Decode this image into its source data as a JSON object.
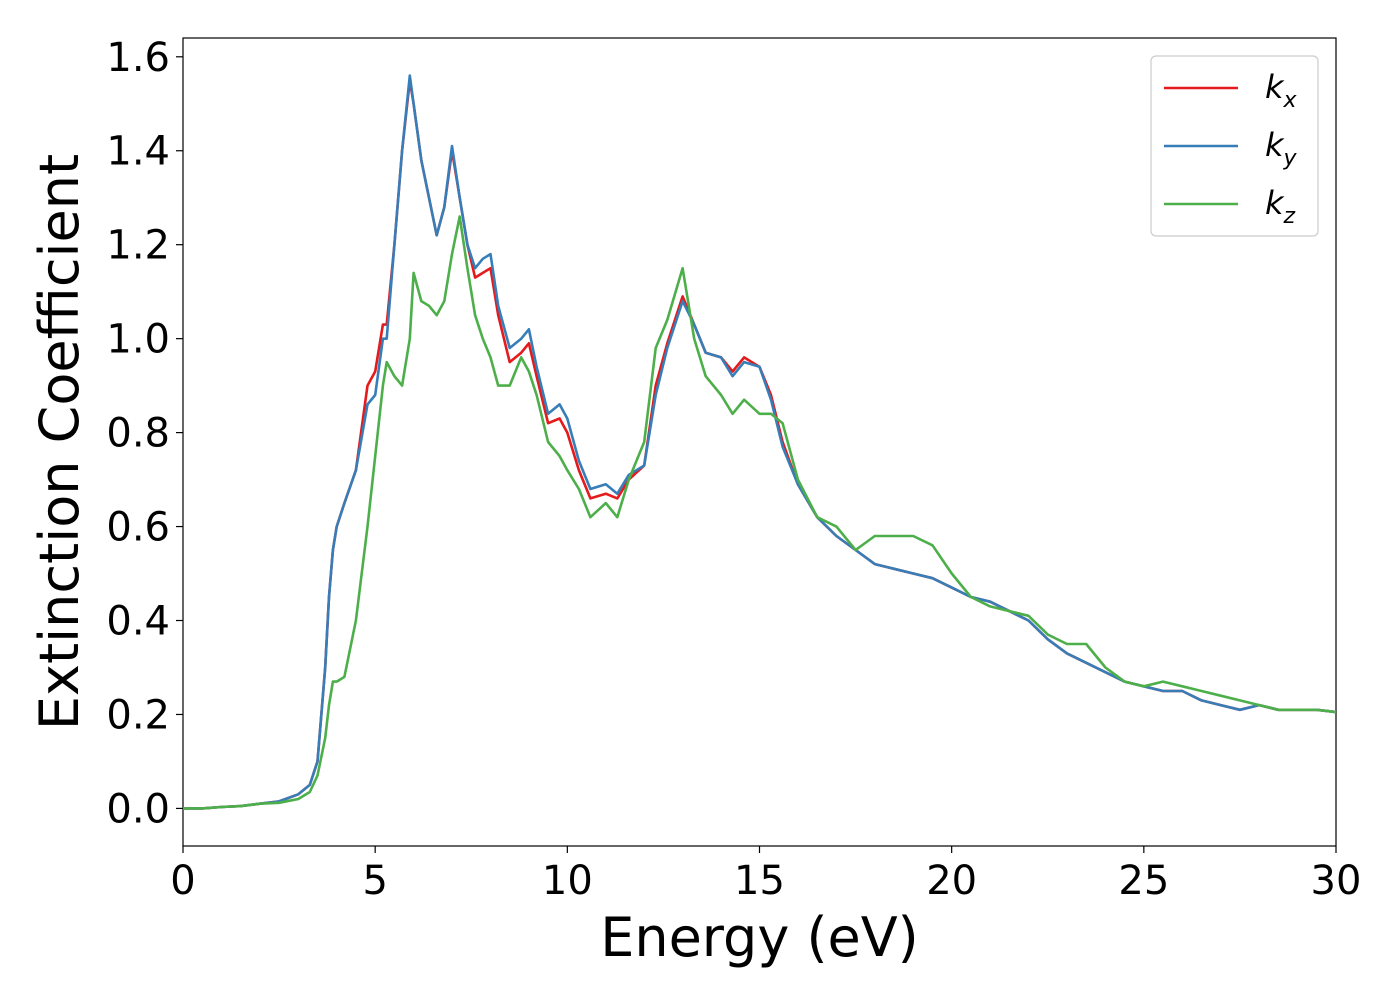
{
  "chart_data": {
    "type": "line",
    "xlabel": "Energy (eV)",
    "ylabel": "Extinction Coefficient",
    "xlim": [
      0,
      30
    ],
    "ylim": [
      -0.08,
      1.64
    ],
    "xticks": [
      0,
      5,
      10,
      15,
      20,
      25,
      30
    ],
    "xtick_labels": [
      "0",
      "5",
      "10",
      "15",
      "20",
      "25",
      "30"
    ],
    "yticks": [
      0.0,
      0.2,
      0.4,
      0.6,
      0.8,
      1.0,
      1.2,
      1.4,
      1.6
    ],
    "ytick_labels": [
      "0.0",
      "0.2",
      "0.4",
      "0.6",
      "0.8",
      "1.0",
      "1.2",
      "1.4",
      "1.6"
    ],
    "grid": false,
    "legend_position": "top-right",
    "series": [
      {
        "name": "k_x",
        "label_base": "k",
        "label_sub": "x",
        "color": "#e41a1c",
        "x": [
          0,
          0.5,
          1,
          1.5,
          2,
          2.5,
          3,
          3.3,
          3.5,
          3.7,
          3.8,
          3.9,
          4.0,
          4.2,
          4.5,
          4.8,
          5.0,
          5.2,
          5.3,
          5.5,
          5.7,
          5.9,
          6.0,
          6.2,
          6.4,
          6.6,
          6.8,
          7.0,
          7.2,
          7.4,
          7.6,
          7.8,
          8.0,
          8.2,
          8.5,
          8.8,
          9.0,
          9.2,
          9.5,
          9.8,
          10.0,
          10.3,
          10.6,
          11.0,
          11.3,
          11.6,
          12.0,
          12.3,
          12.6,
          13.0,
          13.3,
          13.6,
          14.0,
          14.3,
          14.6,
          15.0,
          15.3,
          15.6,
          16.0,
          16.5,
          17.0,
          17.5,
          18.0,
          18.5,
          19.0,
          19.5,
          20.0,
          20.5,
          21.0,
          21.5,
          22.0,
          22.5,
          23.0,
          23.5,
          24.0,
          24.5,
          25.0,
          25.5,
          26.0,
          26.5,
          27.0,
          27.5,
          28.0,
          28.5,
          29.0,
          29.5,
          30.0
        ],
        "y": [
          0.0,
          0.0,
          0.003,
          0.005,
          0.01,
          0.015,
          0.03,
          0.05,
          0.1,
          0.3,
          0.45,
          0.55,
          0.6,
          0.65,
          0.72,
          0.9,
          0.93,
          1.03,
          1.03,
          1.2,
          1.4,
          1.55,
          1.5,
          1.38,
          1.3,
          1.22,
          1.28,
          1.4,
          1.3,
          1.2,
          1.13,
          1.14,
          1.15,
          1.05,
          0.95,
          0.97,
          0.99,
          0.92,
          0.82,
          0.83,
          0.8,
          0.72,
          0.66,
          0.67,
          0.66,
          0.7,
          0.73,
          0.9,
          0.99,
          1.09,
          1.03,
          0.97,
          0.96,
          0.93,
          0.96,
          0.94,
          0.88,
          0.78,
          0.69,
          0.62,
          0.58,
          0.55,
          0.52,
          0.51,
          0.5,
          0.49,
          0.47,
          0.45,
          0.44,
          0.42,
          0.4,
          0.36,
          0.33,
          0.31,
          0.29,
          0.27,
          0.26,
          0.25,
          0.25,
          0.23,
          0.22,
          0.21,
          0.22,
          0.21,
          0.21,
          0.21,
          0.205
        ]
      },
      {
        "name": "k_y",
        "label_base": "k",
        "label_sub": "y",
        "color": "#377eb8",
        "x": [
          0,
          0.5,
          1,
          1.5,
          2,
          2.5,
          3,
          3.3,
          3.5,
          3.7,
          3.8,
          3.9,
          4.0,
          4.2,
          4.5,
          4.8,
          5.0,
          5.2,
          5.3,
          5.5,
          5.7,
          5.9,
          6.0,
          6.2,
          6.4,
          6.6,
          6.8,
          7.0,
          7.2,
          7.4,
          7.6,
          7.8,
          8.0,
          8.2,
          8.5,
          8.8,
          9.0,
          9.2,
          9.5,
          9.8,
          10.0,
          10.3,
          10.6,
          11.0,
          11.3,
          11.6,
          12.0,
          12.3,
          12.6,
          13.0,
          13.3,
          13.6,
          14.0,
          14.3,
          14.6,
          15.0,
          15.3,
          15.6,
          16.0,
          16.5,
          17.0,
          17.5,
          18.0,
          18.5,
          19.0,
          19.5,
          20.0,
          20.5,
          21.0,
          21.5,
          22.0,
          22.5,
          23.0,
          23.5,
          24.0,
          24.5,
          25.0,
          25.5,
          26.0,
          26.5,
          27.0,
          27.5,
          28.0,
          28.5,
          29.0,
          29.5,
          30.0
        ],
        "y": [
          0.0,
          0.0,
          0.003,
          0.005,
          0.01,
          0.015,
          0.03,
          0.05,
          0.1,
          0.3,
          0.45,
          0.55,
          0.6,
          0.65,
          0.72,
          0.86,
          0.88,
          1.0,
          1.0,
          1.2,
          1.4,
          1.56,
          1.5,
          1.38,
          1.3,
          1.22,
          1.28,
          1.41,
          1.3,
          1.2,
          1.15,
          1.17,
          1.18,
          1.07,
          0.98,
          1.0,
          1.02,
          0.94,
          0.84,
          0.86,
          0.83,
          0.74,
          0.68,
          0.69,
          0.67,
          0.71,
          0.73,
          0.88,
          0.98,
          1.08,
          1.03,
          0.97,
          0.96,
          0.92,
          0.95,
          0.94,
          0.87,
          0.77,
          0.69,
          0.62,
          0.58,
          0.55,
          0.52,
          0.51,
          0.5,
          0.49,
          0.47,
          0.45,
          0.44,
          0.42,
          0.4,
          0.36,
          0.33,
          0.31,
          0.29,
          0.27,
          0.26,
          0.25,
          0.25,
          0.23,
          0.22,
          0.21,
          0.22,
          0.21,
          0.21,
          0.21,
          0.205
        ]
      },
      {
        "name": "k_z",
        "label_base": "k",
        "label_sub": "z",
        "color": "#4daf4a",
        "x": [
          0,
          0.5,
          1,
          1.5,
          2,
          2.5,
          3,
          3.3,
          3.5,
          3.7,
          3.8,
          3.9,
          4.0,
          4.2,
          4.5,
          4.8,
          5.0,
          5.2,
          5.3,
          5.5,
          5.7,
          5.9,
          6.0,
          6.2,
          6.4,
          6.6,
          6.8,
          7.0,
          7.2,
          7.4,
          7.6,
          7.8,
          8.0,
          8.2,
          8.5,
          8.8,
          9.0,
          9.2,
          9.5,
          9.8,
          10.0,
          10.3,
          10.6,
          11.0,
          11.3,
          11.6,
          12.0,
          12.3,
          12.6,
          13.0,
          13.3,
          13.6,
          14.0,
          14.3,
          14.6,
          15.0,
          15.3,
          15.6,
          16.0,
          16.5,
          17.0,
          17.5,
          18.0,
          18.5,
          19.0,
          19.5,
          20.0,
          20.5,
          21.0,
          21.5,
          22.0,
          22.5,
          23.0,
          23.5,
          24.0,
          24.5,
          25.0,
          25.5,
          26.0,
          26.5,
          27.0,
          27.5,
          28.0,
          28.5,
          29.0,
          29.5,
          30.0
        ],
        "y": [
          0.0,
          0.0,
          0.003,
          0.005,
          0.01,
          0.012,
          0.02,
          0.035,
          0.07,
          0.15,
          0.22,
          0.27,
          0.27,
          0.28,
          0.4,
          0.6,
          0.75,
          0.9,
          0.95,
          0.92,
          0.9,
          1.0,
          1.14,
          1.08,
          1.07,
          1.05,
          1.08,
          1.18,
          1.26,
          1.15,
          1.05,
          1.0,
          0.96,
          0.9,
          0.9,
          0.96,
          0.93,
          0.88,
          0.78,
          0.75,
          0.72,
          0.68,
          0.62,
          0.65,
          0.62,
          0.7,
          0.78,
          0.98,
          1.04,
          1.15,
          1.0,
          0.92,
          0.88,
          0.84,
          0.87,
          0.84,
          0.84,
          0.82,
          0.7,
          0.62,
          0.6,
          0.55,
          0.58,
          0.58,
          0.58,
          0.56,
          0.5,
          0.45,
          0.43,
          0.42,
          0.41,
          0.37,
          0.35,
          0.35,
          0.3,
          0.27,
          0.26,
          0.27,
          0.26,
          0.25,
          0.24,
          0.23,
          0.22,
          0.21,
          0.21,
          0.21,
          0.205
        ]
      }
    ]
  }
}
